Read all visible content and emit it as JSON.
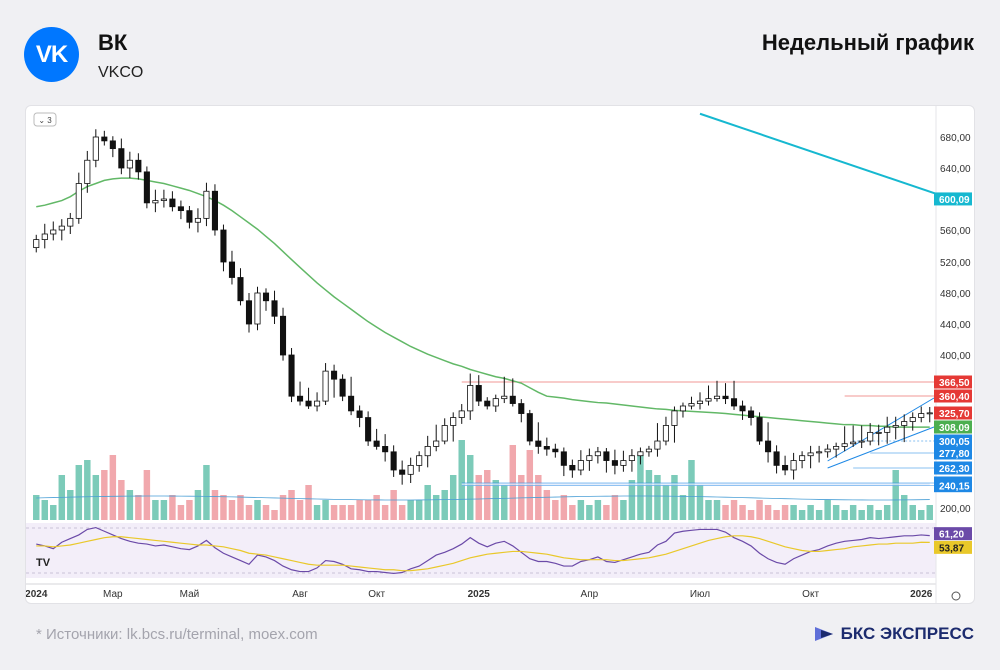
{
  "header": {
    "logo_text": "VK",
    "title": "ВК",
    "ticker": "VKCO",
    "chart_title": "Недельный график"
  },
  "footer": {
    "sources": "*  Источники: lk.bcs.ru/terminal, moex.com",
    "brand": "БКС ЭКСПРЕСС"
  },
  "colors": {
    "up": "#ffffff",
    "down": "#111111",
    "ma_green": "#62b867",
    "ma_cyan": "#16b8d0",
    "vol_up": "#7ccbb9",
    "vol_down": "#f1a8ad",
    "rsi": "#6b4aa8",
    "rsi_signal": "#e9c82a",
    "resistance": "#e53935",
    "support": "#1e88e5",
    "brand": "#1c2b6e"
  },
  "chart_data": {
    "type": "candlestick",
    "indicator_badge": "3",
    "price_ticks": [
      680,
      640,
      600,
      560,
      520,
      480,
      440,
      400,
      200
    ],
    "price_tick_labels": [
      "680,00",
      "640,00",
      "600,00",
      "560,00",
      "520,00",
      "480,00",
      "440,00",
      "400,00",
      "200,00"
    ],
    "x_labels": [
      {
        "label": "2024",
        "week": 0,
        "bold": true
      },
      {
        "label": "Мар",
        "week": 9,
        "bold": false
      },
      {
        "label": "Май",
        "week": 18,
        "bold": false
      },
      {
        "label": "Авг",
        "week": 31,
        "bold": false
      },
      {
        "label": "Окт",
        "week": 40,
        "bold": false
      },
      {
        "label": "2025",
        "week": 52,
        "bold": true
      },
      {
        "label": "Апр",
        "week": 65,
        "bold": false
      },
      {
        "label": "Июл",
        "week": 78,
        "bold": false
      },
      {
        "label": "Окт",
        "week": 91,
        "bold": false
      },
      {
        "label": "2026",
        "week": 104,
        "bold": true
      }
    ],
    "price_badges": [
      {
        "label": "600,09",
        "value": 600.09,
        "color": "#16b8d0"
      },
      {
        "label": "366,50",
        "value": 366.5,
        "color": "#e53935"
      },
      {
        "label": "360,40",
        "value": 360.4,
        "color": "#e53935"
      },
      {
        "label": "325,70",
        "value": 325.7,
        "color": "#e53935"
      },
      {
        "label": "308,09",
        "value": 308.09,
        "color": "#4caf50"
      },
      {
        "label": "300,05",
        "value": 300.05,
        "color": "#1e88e5"
      },
      {
        "label": "277,80",
        "value": 277.8,
        "color": "#1e88e5"
      },
      {
        "label": "262,30",
        "value": 262.3,
        "color": "#1e88e5"
      },
      {
        "label": "245,00",
        "value": 245,
        "color": "#1e88e5"
      },
      {
        "label": "240,15",
        "value": 240.15,
        "color": "#1e88e5"
      }
    ],
    "rsi_badges": [
      {
        "label": "61,20",
        "value": 61.2,
        "color": "#6b4aa8"
      },
      {
        "label": "53,87",
        "value": 53.87,
        "color": "#e9c82a"
      }
    ],
    "close": [
      548,
      555,
      560,
      565,
      575,
      620,
      650,
      680,
      675,
      665,
      640,
      650,
      635,
      595,
      598,
      600,
      590,
      585,
      570,
      575,
      610,
      560,
      520,
      500,
      470,
      440,
      480,
      470,
      450,
      400,
      360,
      350,
      340,
      350,
      380,
      370,
      360,
      330,
      320,
      300,
      290,
      280,
      260,
      255,
      265,
      275,
      290,
      300,
      310,
      320,
      330,
      365,
      350,
      340,
      355,
      360,
      345,
      325,
      300,
      290,
      285,
      280,
      265,
      260,
      270,
      275,
      280,
      270,
      265,
      270,
      275,
      280,
      285,
      300,
      310,
      330,
      340,
      345,
      350,
      355,
      360,
      355,
      340,
      330,
      320,
      300,
      280,
      265,
      260,
      270,
      275,
      278,
      280,
      285,
      290,
      295,
      298,
      300,
      305,
      305,
      308,
      310,
      315,
      320,
      325,
      326
    ],
    "ma50": [
      590,
      592,
      595,
      598,
      603,
      610,
      616,
      620,
      624,
      626,
      627,
      627,
      626,
      624,
      622,
      620,
      617,
      614,
      611,
      607,
      603,
      598,
      592,
      585,
      577,
      569,
      561,
      552,
      543,
      533,
      523,
      513,
      503,
      493,
      484,
      475,
      467,
      459,
      451,
      443,
      436,
      429,
      423,
      417,
      411,
      406,
      401,
      397,
      393,
      389,
      386,
      382,
      379,
      376,
      373,
      371,
      368,
      366,
      364,
      362,
      360,
      358,
      356,
      353,
      351,
      349,
      347,
      346,
      344,
      342,
      340,
      338,
      336,
      334,
      333,
      331,
      330,
      329,
      328,
      327,
      326,
      325,
      324,
      323,
      322,
      321,
      320,
      319,
      318,
      317,
      316,
      315,
      314,
      313,
      312,
      311,
      311,
      310,
      310,
      309,
      309,
      308,
      308,
      308,
      308,
      308
    ],
    "ma200_line": [
      {
        "week": 78,
        "value": 710
      },
      {
        "week": 108,
        "value": 600.09
      }
    ],
    "volume_peaks": [
      0.5,
      0.4,
      0.3,
      0.9,
      0.6,
      1.1,
      1.2,
      0.9,
      1.0,
      1.3,
      0.8,
      0.6,
      0.5,
      1.0,
      0.4,
      0.4,
      0.5,
      0.3,
      0.4,
      0.6,
      1.1,
      0.6,
      0.5,
      0.4,
      0.5,
      0.3,
      0.4,
      0.3,
      0.2,
      0.5,
      0.6,
      0.4,
      0.7,
      0.3,
      0.4,
      0.3,
      0.3,
      0.3,
      0.4,
      0.4,
      0.5,
      0.3,
      0.6,
      0.3,
      0.4,
      0.4,
      0.7,
      0.5,
      0.6,
      0.9,
      1.6,
      1.3,
      0.9,
      1.0,
      0.8,
      0.7,
      1.5,
      0.9,
      1.4,
      0.9,
      0.6,
      0.4,
      0.5,
      0.3,
      0.4,
      0.3,
      0.4,
      0.3,
      0.5,
      0.4,
      0.8,
      1.3,
      1.0,
      0.9,
      0.7,
      0.9,
      0.5,
      1.2,
      0.7,
      0.4,
      0.4,
      0.3,
      0.4,
      0.3,
      0.2,
      0.4,
      0.3,
      0.2,
      0.3,
      0.3,
      0.2,
      0.3,
      0.2,
      0.4,
      0.3,
      0.2,
      0.3,
      0.2,
      0.3,
      0.2,
      0.3,
      1.0,
      0.5,
      0.3,
      0.2,
      0.3
    ],
    "rsi": [
      52,
      50,
      47,
      54,
      58,
      62,
      68,
      70,
      66,
      62,
      58,
      55,
      53,
      52,
      50,
      51,
      49,
      47,
      46,
      50,
      56,
      48,
      42,
      38,
      34,
      30,
      40,
      38,
      34,
      28,
      24,
      22,
      22,
      26,
      34,
      33,
      30,
      25,
      24,
      22,
      22,
      21,
      20,
      21,
      25,
      28,
      34,
      40,
      43,
      47,
      52,
      59,
      53,
      49,
      53,
      55,
      50,
      43,
      36,
      33,
      33,
      31,
      28,
      28,
      33,
      35,
      38,
      33,
      32,
      35,
      38,
      41,
      43,
      51,
      55,
      64,
      66,
      67,
      68,
      68,
      68,
      65,
      59,
      55,
      50,
      42,
      36,
      32,
      30,
      36,
      40,
      44,
      46,
      50,
      53,
      55,
      56,
      57,
      59,
      58,
      59,
      60,
      61,
      61,
      62,
      61.2
    ],
    "rsi_signal": [
      50,
      50,
      49,
      50,
      51,
      53,
      55,
      57,
      59,
      60,
      60,
      59,
      58,
      57,
      56,
      55,
      54,
      53,
      52,
      51,
      51,
      50,
      49,
      47,
      45,
      42,
      41,
      40,
      38,
      36,
      34,
      32,
      30,
      29,
      29,
      29,
      29,
      28,
      27,
      26,
      25,
      24,
      24,
      23,
      23,
      24,
      25,
      27,
      29,
      31,
      34,
      37,
      39,
      41,
      42,
      43,
      44,
      44,
      43,
      42,
      41,
      39,
      37,
      36,
      35,
      35,
      35,
      35,
      34,
      34,
      35,
      36,
      37,
      39,
      41,
      44,
      47,
      50,
      53,
      56,
      58,
      60,
      61,
      61,
      60,
      58,
      55,
      52,
      49,
      47,
      45,
      44,
      44,
      45,
      46,
      47,
      49,
      50,
      51,
      52,
      52,
      53,
      53,
      53,
      54,
      53.87
    ],
    "resistance_lines": [
      366.5,
      360.4
    ],
    "support_lines": [
      300.05,
      277.8,
      262.3,
      245,
      240.15
    ]
  }
}
